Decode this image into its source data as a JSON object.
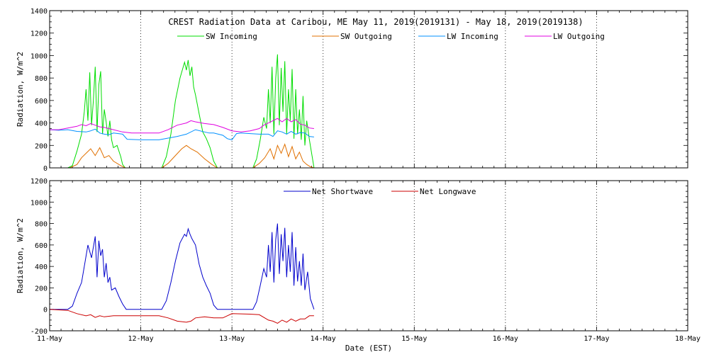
{
  "title": "CREST Radiation Data at Caribou, ME   May 11, 2019(2019131) - May 18, 2019(2019138)",
  "xlabel": "Date (EST)",
  "colors": {
    "sw_in": "#00dd00",
    "sw_out": "#e07000",
    "lw_in": "#0090ff",
    "lw_out": "#e000e0",
    "net_sw": "#0000cc",
    "net_lw": "#cc0000"
  },
  "chart_data": [
    {
      "type": "line",
      "ylabel": "Radiation, W/m^2",
      "xlim": [
        11,
        18
      ],
      "ylim": [
        0,
        1400
      ],
      "x_ticks": [
        "11-May",
        "12-May",
        "13-May",
        "14-May",
        "15-May",
        "16-May",
        "17-May",
        "18-May"
      ],
      "y_ticks": [
        0,
        200,
        400,
        600,
        800,
        1000,
        1200,
        1400
      ],
      "grid": true,
      "legend": "top",
      "series": [
        {
          "name": "SW Incoming",
          "color": "#00dd00",
          "x": [
            11.0,
            11.2,
            11.25,
            11.3,
            11.35,
            11.38,
            11.4,
            11.42,
            11.44,
            11.46,
            11.48,
            11.5,
            11.52,
            11.54,
            11.56,
            11.58,
            11.6,
            11.62,
            11.64,
            11.66,
            11.68,
            11.7,
            11.74,
            11.78,
            11.8,
            11.83,
            12.0,
            12.23,
            12.28,
            12.33,
            12.38,
            12.43,
            12.48,
            12.5,
            12.52,
            12.54,
            12.56,
            12.58,
            12.6,
            12.64,
            12.68,
            12.72,
            12.76,
            12.8,
            12.84,
            13.0,
            13.23,
            13.27,
            13.31,
            13.35,
            13.38,
            13.4,
            13.42,
            13.44,
            13.46,
            13.48,
            13.5,
            13.52,
            13.54,
            13.56,
            13.58,
            13.6,
            13.62,
            13.64,
            13.66,
            13.68,
            13.7,
            13.72,
            13.74,
            13.76,
            13.78,
            13.8,
            13.82,
            13.85,
            13.88,
            13.9
          ],
          "y": [
            0,
            0,
            20,
            150,
            300,
            500,
            700,
            420,
            850,
            380,
            600,
            900,
            320,
            740,
            860,
            300,
            520,
            410,
            280,
            420,
            250,
            180,
            200,
            100,
            30,
            0,
            0,
            0,
            100,
            300,
            600,
            800,
            940,
            870,
            960,
            820,
            900,
            720,
            650,
            480,
            320,
            260,
            180,
            60,
            0,
            0,
            0,
            80,
            250,
            450,
            350,
            700,
            400,
            900,
            300,
            800,
            1010,
            380,
            890,
            500,
            950,
            300,
            700,
            420,
            880,
            260,
            700,
            300,
            520,
            250,
            640,
            200,
            420,
            250,
            100,
            0
          ]
        },
        {
          "name": "SW Outgoing",
          "color": "#e07000",
          "x": [
            11.0,
            11.22,
            11.3,
            11.35,
            11.4,
            11.45,
            11.5,
            11.55,
            11.6,
            11.65,
            11.7,
            11.78,
            11.83,
            12.0,
            12.23,
            12.3,
            12.38,
            12.45,
            12.5,
            12.55,
            12.62,
            12.7,
            12.78,
            12.84,
            13.0,
            13.23,
            13.3,
            13.36,
            13.42,
            13.46,
            13.5,
            13.54,
            13.58,
            13.62,
            13.66,
            13.7,
            13.74,
            13.78,
            13.82,
            13.86,
            13.9
          ],
          "y": [
            0,
            0,
            30,
            90,
            130,
            170,
            110,
            180,
            90,
            110,
            60,
            20,
            0,
            0,
            0,
            40,
            110,
            170,
            200,
            170,
            140,
            80,
            30,
            0,
            0,
            0,
            40,
            90,
            170,
            80,
            200,
            130,
            210,
            100,
            190,
            80,
            140,
            60,
            30,
            10,
            0
          ]
        },
        {
          "name": "LW Incoming",
          "color": "#0090ff",
          "x": [
            11.0,
            11.1,
            11.2,
            11.3,
            11.4,
            11.45,
            11.5,
            11.55,
            11.6,
            11.65,
            11.7,
            11.8,
            11.85,
            12.0,
            12.2,
            12.3,
            12.4,
            12.5,
            12.6,
            12.7,
            12.75,
            12.8,
            12.9,
            12.95,
            13.0,
            13.05,
            13.1,
            13.2,
            13.3,
            13.4,
            13.45,
            13.5,
            13.55,
            13.6,
            13.65,
            13.7,
            13.75,
            13.8,
            13.85,
            13.9
          ],
          "y": [
            340,
            335,
            340,
            325,
            320,
            330,
            345,
            310,
            300,
            295,
            310,
            300,
            255,
            250,
            250,
            265,
            280,
            300,
            340,
            320,
            310,
            310,
            290,
            260,
            250,
            305,
            310,
            305,
            300,
            300,
            280,
            330,
            320,
            300,
            325,
            300,
            315,
            310,
            280,
            275
          ]
        },
        {
          "name": "LW Outgoing",
          "color": "#e000e0",
          "x": [
            11.0,
            11.1,
            11.2,
            11.3,
            11.35,
            11.4,
            11.45,
            11.5,
            11.55,
            11.6,
            11.7,
            11.8,
            11.9,
            12.0,
            12.2,
            12.3,
            12.4,
            12.5,
            12.55,
            12.6,
            12.7,
            12.8,
            12.9,
            13.0,
            13.1,
            13.2,
            13.3,
            13.35,
            13.4,
            13.45,
            13.5,
            13.55,
            13.6,
            13.65,
            13.7,
            13.75,
            13.8,
            13.85,
            13.9
          ],
          "y": [
            340,
            340,
            355,
            370,
            385,
            375,
            395,
            380,
            365,
            360,
            340,
            320,
            310,
            310,
            310,
            340,
            380,
            400,
            420,
            410,
            395,
            385,
            360,
            330,
            320,
            330,
            350,
            380,
            400,
            420,
            440,
            410,
            440,
            410,
            430,
            390,
            380,
            355,
            350
          ]
        }
      ]
    },
    {
      "type": "line",
      "ylabel": "Radiation, W/m^2",
      "xlim": [
        11,
        18
      ],
      "ylim": [
        -200,
        1200
      ],
      "x_ticks": [
        "11-May",
        "12-May",
        "13-May",
        "14-May",
        "15-May",
        "16-May",
        "17-May",
        "18-May"
      ],
      "y_ticks": [
        -200,
        0,
        200,
        400,
        600,
        800,
        1000,
        1200
      ],
      "grid": true,
      "legend": "top",
      "series": [
        {
          "name": "Net Shortwave",
          "color": "#0000cc",
          "x": [
            11.0,
            11.2,
            11.25,
            11.3,
            11.35,
            11.38,
            11.42,
            11.46,
            11.5,
            11.52,
            11.54,
            11.56,
            11.58,
            11.6,
            11.62,
            11.64,
            11.66,
            11.68,
            11.72,
            11.76,
            11.8,
            11.84,
            12.0,
            12.23,
            12.28,
            12.33,
            12.38,
            12.43,
            12.48,
            12.5,
            12.52,
            12.54,
            12.56,
            12.6,
            12.64,
            12.68,
            12.72,
            12.76,
            12.8,
            12.84,
            13.0,
            13.23,
            13.27,
            13.31,
            13.35,
            13.38,
            13.4,
            13.42,
            13.44,
            13.46,
            13.48,
            13.5,
            13.52,
            13.54,
            13.56,
            13.58,
            13.6,
            13.62,
            13.64,
            13.66,
            13.68,
            13.7,
            13.72,
            13.74,
            13.76,
            13.78,
            13.8,
            13.83,
            13.86,
            13.9
          ],
          "y": [
            0,
            0,
            30,
            150,
            250,
            400,
            600,
            480,
            680,
            300,
            640,
            500,
            560,
            300,
            430,
            250,
            300,
            180,
            200,
            120,
            50,
            0,
            0,
            0,
            80,
            250,
            450,
            620,
            700,
            680,
            750,
            700,
            660,
            600,
            420,
            300,
            220,
            150,
            40,
            0,
            0,
            0,
            70,
            220,
            380,
            300,
            600,
            350,
            720,
            250,
            650,
            800,
            330,
            700,
            450,
            760,
            300,
            600,
            350,
            720,
            220,
            580,
            260,
            450,
            220,
            520,
            180,
            350,
            100,
            0
          ]
        },
        {
          "name": "Net Longwave",
          "color": "#cc0000",
          "x": [
            11.0,
            11.2,
            11.3,
            11.4,
            11.45,
            11.5,
            11.55,
            11.6,
            11.7,
            11.8,
            12.0,
            12.2,
            12.3,
            12.4,
            12.5,
            12.55,
            12.6,
            12.7,
            12.8,
            12.9,
            13.0,
            13.2,
            13.3,
            13.4,
            13.45,
            13.5,
            13.55,
            13.6,
            13.65,
            13.7,
            13.75,
            13.8,
            13.85,
            13.9
          ],
          "y": [
            0,
            -10,
            -40,
            -60,
            -50,
            -75,
            -60,
            -70,
            -60,
            -60,
            -60,
            -60,
            -80,
            -110,
            -120,
            -110,
            -80,
            -70,
            -80,
            -80,
            -40,
            -45,
            -50,
            -100,
            -110,
            -130,
            -100,
            -120,
            -90,
            -110,
            -90,
            -90,
            -60,
            -60
          ]
        }
      ]
    }
  ]
}
